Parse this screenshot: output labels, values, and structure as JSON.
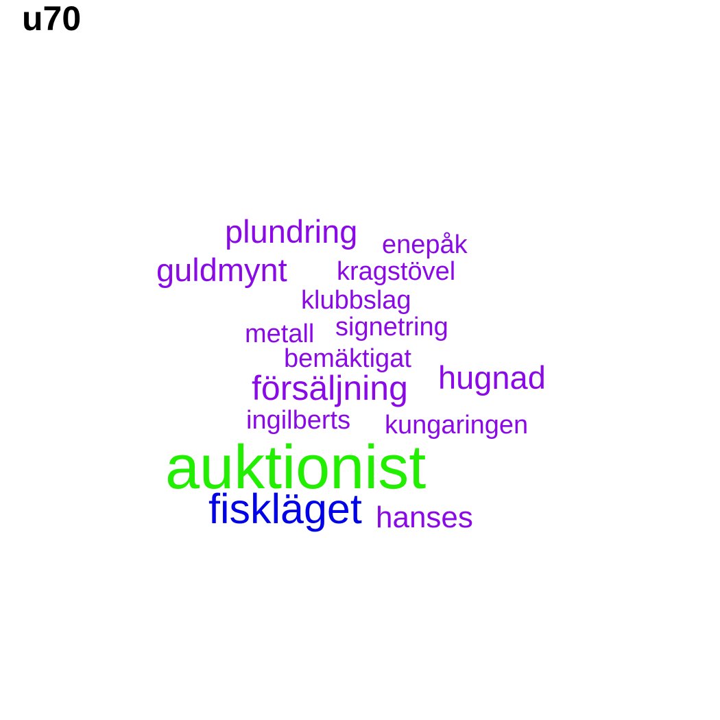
{
  "title": "u70",
  "colors": {
    "purple": "#8a0ae6",
    "green": "#22ee00",
    "blue": "#0000e8",
    "background": "#ffffff",
    "title": "#000000"
  },
  "words": [
    "plundring",
    "enepåk",
    "guldmynt",
    "kragstövel",
    "klubbslag",
    "metall",
    "signetring",
    "bemäktigat",
    "försäljning",
    "hugnad",
    "ingilberts",
    "kungaringen",
    "auktionist",
    "fiskläget",
    "hanses"
  ]
}
